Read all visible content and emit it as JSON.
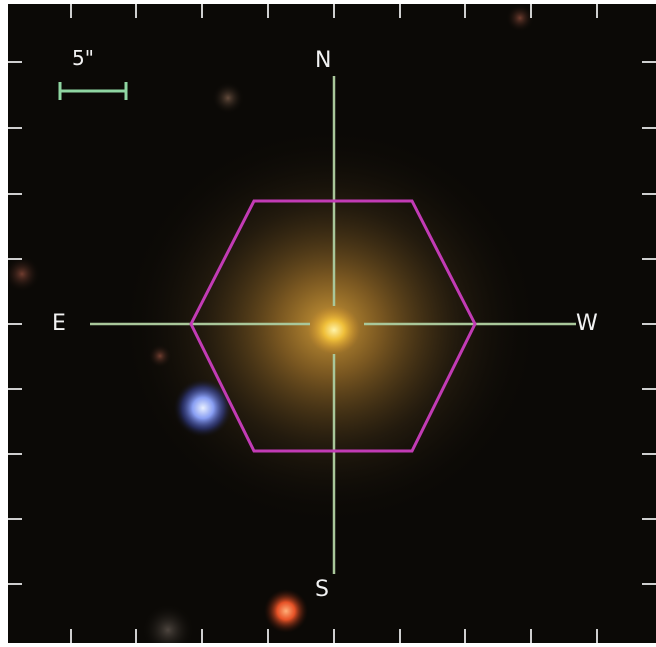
{
  "image": {
    "background_color": "#0b0906",
    "crosshair_color": "#a9c79a",
    "aperture_color": "#c23bb5",
    "scale_bar_color": "#8fd6a2",
    "tick_color": "#cfcfcf"
  },
  "compass": {
    "north": "N",
    "south": "S",
    "east": "E",
    "west": "W"
  },
  "scale_bar": {
    "label": "5\""
  },
  "aperture": {
    "shape": "hexagon"
  },
  "sources": [
    {
      "name": "target-galaxy",
      "color": "#f2c23a"
    },
    {
      "name": "blue-star",
      "color": "#8fa6ff"
    },
    {
      "name": "red-source-bottom",
      "color": "#ff5a2a"
    },
    {
      "name": "faint-source-top",
      "color": "#7a5c4a"
    },
    {
      "name": "faint-source-left-edge",
      "color": "#8a4a3a"
    }
  ]
}
